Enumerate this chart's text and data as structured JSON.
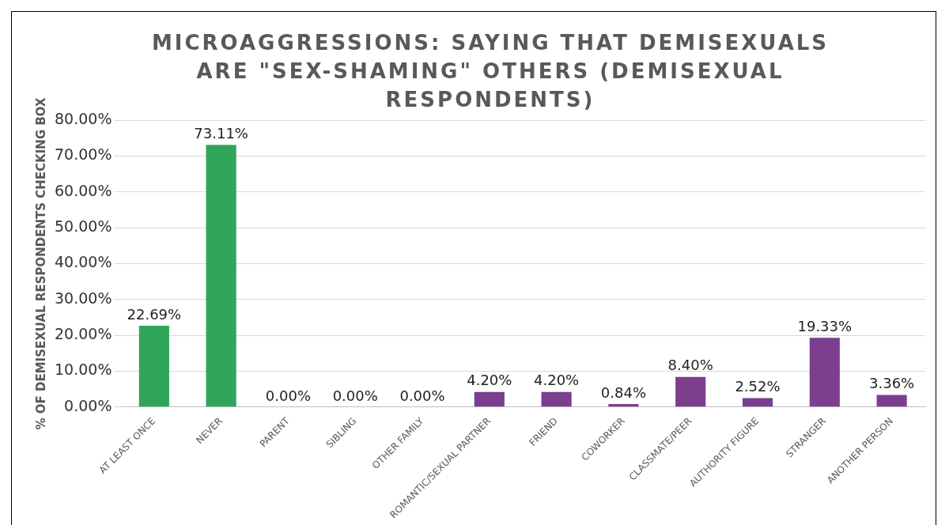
{
  "chart_data": {
    "type": "bar",
    "title": "MICROAGGRESSIONS: SAYING THAT DEMISEXUALS ARE \"SEX-SHAMING\" OTHERS (DEMISEXUAL RESPONDENTS)",
    "ylabel": "% OF DEMISEXUAL RESPONDENTS CHECKING BOX",
    "categories": [
      "AT LEAST ONCE",
      "NEVER",
      "PARENT",
      "SIBLING",
      "OTHER FAMILY",
      "ROMANTIC/SEXUAL PARTNER",
      "FRIEND",
      "COWORKER",
      "CLASSMATE/PEER",
      "AUTHORITY FIGURE",
      "STRANGER",
      "ANOTHER PERSON"
    ],
    "values": [
      22.69,
      73.11,
      0,
      0,
      0,
      4.2,
      4.2,
      0.84,
      8.4,
      2.52,
      19.33,
      3.36
    ],
    "value_labels": [
      "22.69%",
      "73.11%",
      "0.00%",
      "0.00%",
      "0.00%",
      "4.20%",
      "4.20%",
      "0.84%",
      "8.40%",
      "2.52%",
      "19.33%",
      "3.36%"
    ],
    "colors": [
      "#2fa659",
      "#2fa659",
      "#7b3f8e",
      "#7b3f8e",
      "#7b3f8e",
      "#7b3f8e",
      "#7b3f8e",
      "#7b3f8e",
      "#7b3f8e",
      "#7b3f8e",
      "#7b3f8e",
      "#7b3f8e"
    ],
    "ylim": [
      0,
      80
    ],
    "yticks": [
      {
        "value": 0,
        "label": "0.00%"
      },
      {
        "value": 10,
        "label": "10.00%"
      },
      {
        "value": 20,
        "label": "20.00%"
      },
      {
        "value": 30,
        "label": "30.00%"
      },
      {
        "value": 40,
        "label": "40.00%"
      },
      {
        "value": 50,
        "label": "50.00%"
      },
      {
        "value": 60,
        "label": "60.00%"
      },
      {
        "value": 70,
        "label": "70.00%"
      },
      {
        "value": 80,
        "label": "80.00%"
      }
    ],
    "grid": "y",
    "legend": false
  }
}
